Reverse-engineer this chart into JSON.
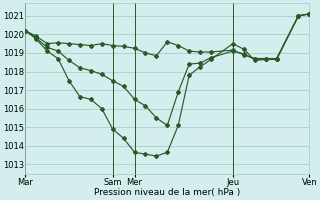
{
  "background_color": "#d4eeee",
  "grid_color": "#a0c8c8",
  "line_color": "#2a5a28",
  "ylim": [
    1012.5,
    1021.7
  ],
  "yticks": [
    1013,
    1014,
    1015,
    1016,
    1017,
    1018,
    1019,
    1020,
    1021
  ],
  "xlabel": "Pression niveau de la mer( hPa )",
  "day_line_x": [
    0.0,
    4.0,
    5.0,
    9.5,
    13.0
  ],
  "day_labels": [
    "Mar",
    "Sam",
    "Mer",
    "Jeu",
    "Ven"
  ],
  "line1_x": [
    0,
    0.5,
    1.0,
    1.5,
    2.0,
    2.5,
    3.0,
    3.5,
    4.0,
    4.5,
    5.0,
    5.5,
    6.0,
    6.5,
    7.0,
    7.5,
    8.0,
    8.5,
    9.5,
    10.0,
    10.5,
    11.0,
    11.5,
    12.5,
    13.0
  ],
  "line1_y": [
    1020.2,
    1019.75,
    1019.1,
    1018.7,
    1017.5,
    1016.65,
    1016.5,
    1016.0,
    1014.9,
    1014.4,
    1013.65,
    1013.55,
    1013.45,
    1013.65,
    1015.1,
    1017.8,
    1018.25,
    1018.65,
    1019.5,
    1019.2,
    1018.6,
    1018.65,
    1018.65,
    1021.0,
    1021.1
  ],
  "line2_x": [
    0,
    0.5,
    1.0,
    1.5,
    2.0,
    2.5,
    3.0,
    3.5,
    4.0,
    4.5,
    5.0,
    5.5,
    6.0,
    6.5,
    7.0,
    7.5,
    8.0,
    8.5,
    9.5,
    10.0,
    10.5,
    11.0,
    11.5,
    12.5,
    13.0
  ],
  "line2_y": [
    1020.2,
    1019.9,
    1019.5,
    1019.55,
    1019.5,
    1019.45,
    1019.4,
    1019.5,
    1019.4,
    1019.35,
    1019.25,
    1019.0,
    1018.85,
    1019.6,
    1019.4,
    1019.1,
    1019.05,
    1019.05,
    1019.15,
    1018.9,
    1018.7,
    1018.7,
    1018.7,
    1021.0,
    1021.1
  ],
  "line3_x": [
    0,
    0.5,
    1.0,
    1.5,
    2.0,
    2.5,
    3.0,
    3.5,
    4.0,
    4.5,
    5.0,
    5.5,
    6.0,
    6.5,
    7.0,
    7.5,
    8.0,
    8.5,
    9.5,
    10.0,
    10.5,
    11.0,
    11.5,
    12.5,
    13.0
  ],
  "line3_y": [
    1020.2,
    1019.8,
    1019.3,
    1019.1,
    1018.6,
    1018.2,
    1018.05,
    1017.85,
    1017.5,
    1017.2,
    1016.5,
    1016.15,
    1015.5,
    1015.1,
    1016.9,
    1018.4,
    1018.45,
    1018.75,
    1019.1,
    1018.95,
    1018.65,
    1018.65,
    1018.65,
    1021.0,
    1021.1
  ]
}
